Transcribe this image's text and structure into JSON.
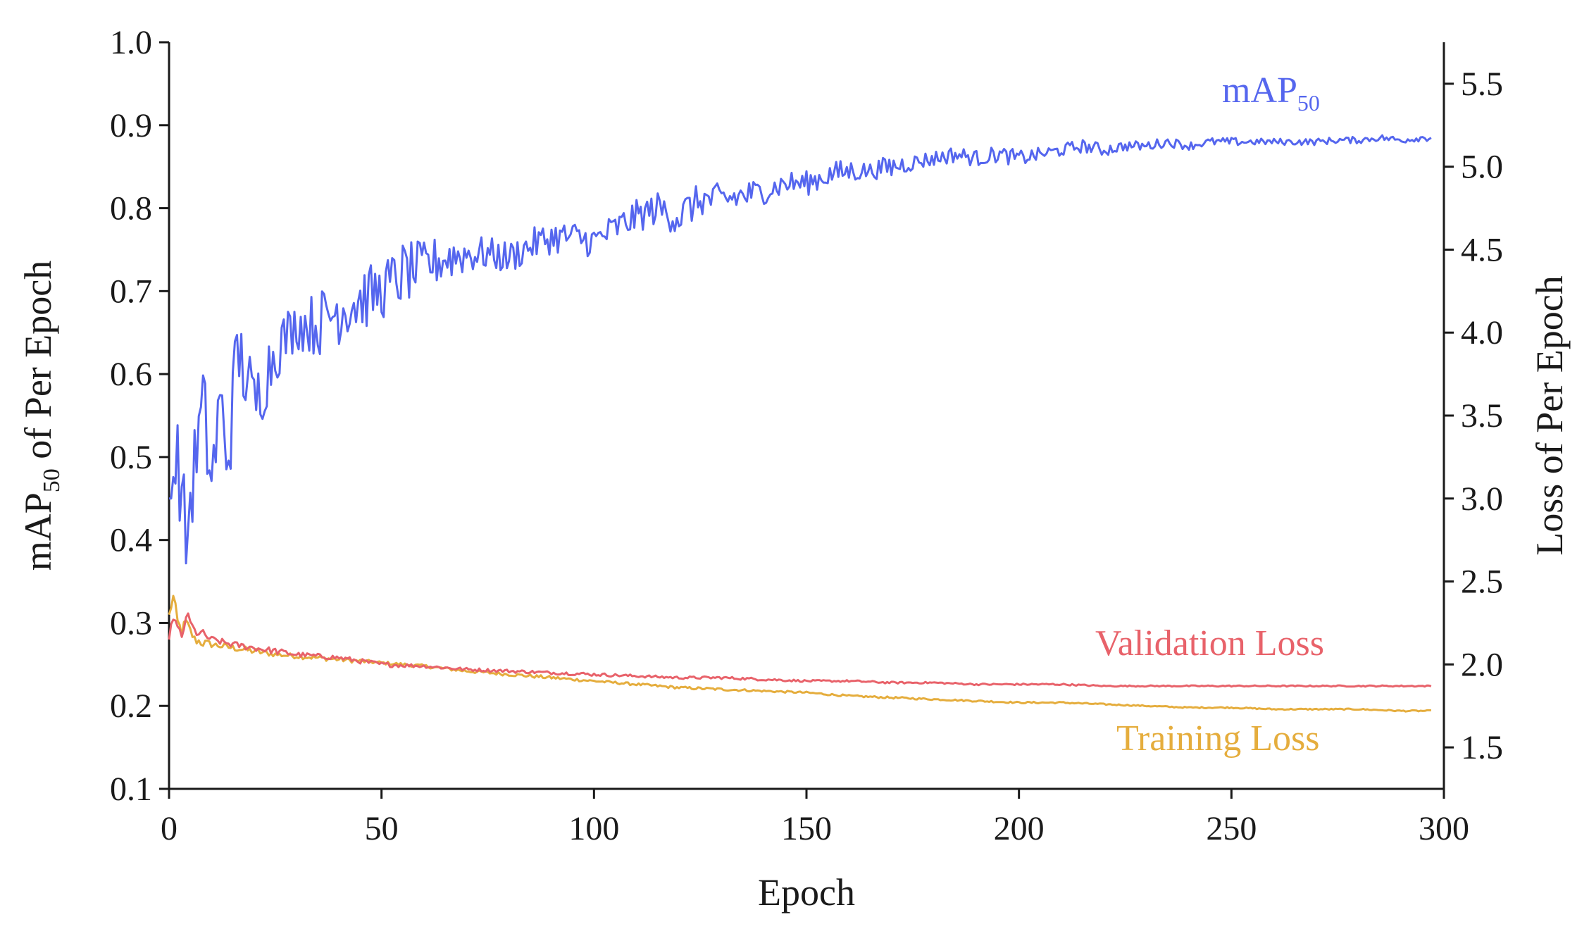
{
  "chart_data": {
    "type": "line",
    "xlabel": "Epoch",
    "ylabel_left": {
      "base": "mAP",
      "sub": "50",
      "rest": " of Per Epoch"
    },
    "ylabel_right": "Loss of Per Epoch",
    "xlim": [
      0,
      300
    ],
    "ylim_left": [
      0.1,
      1.0
    ],
    "ylim_right": [
      1.25,
      5.75
    ],
    "x_ticks": [
      "0",
      "50",
      "100",
      "150",
      "200",
      "250",
      "300"
    ],
    "y_left_ticks": [
      "0.1",
      "0.2",
      "0.3",
      "0.4",
      "0.5",
      "0.6",
      "0.7",
      "0.8",
      "0.9",
      "1.0"
    ],
    "y_right_ticks": [
      "1.5",
      "2.0",
      "2.5",
      "3.0",
      "3.5",
      "4.0",
      "4.5",
      "5.0",
      "5.5"
    ],
    "grid": false,
    "series": [
      {
        "name": "mAP50",
        "label_base": "mAP",
        "label_sub": "50",
        "axis": "left",
        "color": "#5566ee",
        "x": [
          0,
          2,
          4,
          6,
          8,
          10,
          12,
          14,
          16,
          18,
          20,
          25,
          30,
          35,
          40,
          45,
          50,
          55,
          60,
          65,
          70,
          75,
          80,
          85,
          90,
          95,
          100,
          105,
          110,
          115,
          120,
          125,
          130,
          135,
          140,
          145,
          150,
          155,
          160,
          165,
          170,
          175,
          180,
          185,
          190,
          195,
          200,
          205,
          210,
          215,
          220,
          225,
          230,
          235,
          240,
          245,
          250,
          255,
          260,
          265,
          270,
          275,
          280,
          285,
          290,
          295,
          297
        ],
        "values": [
          0.45,
          0.5,
          0.4,
          0.49,
          0.56,
          0.47,
          0.56,
          0.5,
          0.63,
          0.6,
          0.56,
          0.63,
          0.66,
          0.66,
          0.68,
          0.69,
          0.7,
          0.72,
          0.73,
          0.74,
          0.745,
          0.745,
          0.74,
          0.755,
          0.765,
          0.765,
          0.76,
          0.775,
          0.79,
          0.8,
          0.79,
          0.81,
          0.81,
          0.815,
          0.82,
          0.83,
          0.83,
          0.84,
          0.845,
          0.845,
          0.85,
          0.855,
          0.86,
          0.865,
          0.86,
          0.865,
          0.86,
          0.865,
          0.87,
          0.875,
          0.87,
          0.875,
          0.875,
          0.88,
          0.875,
          0.88,
          0.88,
          0.88,
          0.88,
          0.88,
          0.88,
          0.882,
          0.882,
          0.885,
          0.882,
          0.885,
          0.885
        ],
        "noise": [
          0,
          0.05,
          0.06,
          0.05,
          0.06,
          0.05,
          0.06,
          0.05,
          0.05,
          0.05,
          0.05,
          0.04,
          0.03,
          0.04,
          0.045,
          0.04,
          0.035,
          0.04,
          0.03,
          0.03,
          0.025,
          0.02,
          0.02,
          0.02,
          0.02,
          0.02,
          0.02,
          0.02,
          0.02,
          0.02,
          0.025,
          0.02,
          0.02,
          0.02,
          0.015,
          0.015,
          0.015,
          0.015,
          0.015,
          0.01,
          0.015,
          0.01,
          0.01,
          0.01,
          0.01,
          0.01,
          0.01,
          0.008,
          0.008,
          0.008,
          0.008,
          0.006,
          0.006,
          0.006,
          0.005,
          0.005,
          0.005,
          0.004,
          0.004,
          0.004,
          0.004,
          0.004,
          0.004,
          0.004,
          0.004,
          0.004,
          0.004
        ]
      },
      {
        "name": "Validation Loss",
        "axis": "right",
        "color": "#e8626a",
        "x": [
          0,
          1,
          2,
          3,
          4,
          5,
          6,
          8,
          10,
          15,
          20,
          25,
          30,
          40,
          50,
          60,
          70,
          80,
          90,
          100,
          110,
          120,
          130,
          140,
          150,
          160,
          170,
          180,
          190,
          200,
          210,
          220,
          230,
          240,
          250,
          260,
          270,
          280,
          290,
          297
        ],
        "values": [
          2.15,
          2.3,
          2.2,
          2.15,
          2.3,
          2.25,
          2.2,
          2.18,
          2.15,
          2.12,
          2.1,
          2.08,
          2.06,
          2.04,
          2.0,
          1.99,
          1.97,
          1.96,
          1.95,
          1.94,
          1.93,
          1.92,
          1.92,
          1.91,
          1.9,
          1.9,
          1.89,
          1.89,
          1.88,
          1.88,
          1.88,
          1.87,
          1.87,
          1.87,
          1.87,
          1.87,
          1.87,
          1.87,
          1.87,
          1.87
        ],
        "noise": [
          0,
          0.04,
          0.05,
          0.05,
          0.04,
          0.03,
          0.03,
          0.03,
          0.02,
          0.02,
          0.02,
          0.02,
          0.015,
          0.015,
          0.015,
          0.01,
          0.01,
          0.01,
          0.01,
          0.01,
          0.008,
          0.008,
          0.008,
          0.008,
          0.006,
          0.006,
          0.006,
          0.005,
          0.005,
          0.005,
          0.005,
          0.004,
          0.004,
          0.004,
          0.004,
          0.004,
          0.004,
          0.004,
          0.004,
          0.004
        ]
      },
      {
        "name": "Training Loss",
        "axis": "right",
        "color": "#e5ad3d",
        "x": [
          0,
          1,
          2,
          3,
          4,
          5,
          6,
          8,
          10,
          15,
          20,
          25,
          30,
          40,
          50,
          60,
          70,
          80,
          90,
          100,
          110,
          120,
          130,
          140,
          150,
          160,
          170,
          180,
          190,
          200,
          210,
          220,
          230,
          240,
          250,
          260,
          270,
          280,
          290,
          297
        ],
        "values": [
          2.3,
          2.4,
          2.25,
          2.2,
          2.25,
          2.2,
          2.15,
          2.13,
          2.12,
          2.1,
          2.08,
          2.06,
          2.05,
          2.03,
          2.01,
          1.99,
          1.96,
          1.94,
          1.92,
          1.9,
          1.88,
          1.86,
          1.85,
          1.84,
          1.83,
          1.81,
          1.8,
          1.79,
          1.78,
          1.77,
          1.77,
          1.76,
          1.75,
          1.74,
          1.74,
          1.73,
          1.73,
          1.73,
          1.72,
          1.72
        ],
        "noise": [
          0,
          0.05,
          0.04,
          0.04,
          0.04,
          0.03,
          0.03,
          0.03,
          0.02,
          0.02,
          0.02,
          0.015,
          0.015,
          0.015,
          0.01,
          0.01,
          0.01,
          0.01,
          0.01,
          0.008,
          0.008,
          0.008,
          0.008,
          0.006,
          0.006,
          0.006,
          0.006,
          0.005,
          0.005,
          0.005,
          0.005,
          0.004,
          0.004,
          0.004,
          0.004,
          0.004,
          0.004,
          0.004,
          0.004,
          0.004
        ]
      }
    ],
    "annotations": [
      {
        "text": "Validation Loss",
        "color": "#e8626a"
      },
      {
        "text": "Training Loss",
        "color": "#e5ad3d"
      }
    ]
  }
}
